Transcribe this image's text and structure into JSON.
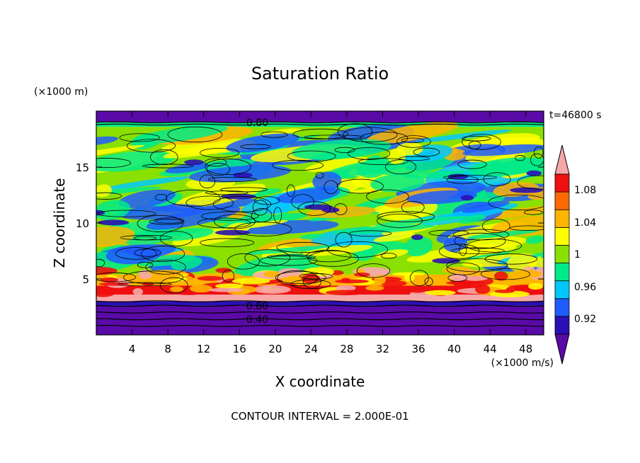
{
  "chart_data": {
    "type": "heatmap",
    "title": "Saturation Ratio",
    "xlabel": "X coordinate",
    "ylabel": "Z coordinate",
    "x_unit": "(×1000 m/s)",
    "y_unit": "(×1000 m)",
    "time_label": "t=46800 s",
    "footer": "CONTOUR INTERVAL = 2.000E-01",
    "xlim": [
      0,
      50
    ],
    "ylim": [
      0,
      20
    ],
    "x_ticks": [
      4,
      8,
      12,
      16,
      20,
      24,
      28,
      32,
      36,
      40,
      44,
      48
    ],
    "y_ticks": [
      5,
      10,
      15
    ],
    "contour_labels": [
      {
        "text": "0.80",
        "x": 18,
        "z": 19.0
      },
      {
        "text": "0.80",
        "x": 18,
        "z": 2.6
      },
      {
        "text": "0.40",
        "x": 18,
        "z": 1.4
      }
    ],
    "colorbar": {
      "labels": [
        "1.08",
        "1.04",
        "1",
        "0.96",
        "0.92"
      ],
      "levels": [
        0.9,
        0.92,
        0.94,
        0.96,
        0.98,
        1.0,
        1.02,
        1.04,
        1.06,
        1.08,
        1.1
      ],
      "colors": [
        "#5a0aa6",
        "#2a10b4",
        "#1e5cff",
        "#00c8ff",
        "#00ea8a",
        "#8ae000",
        "#ffff00",
        "#ffb400",
        "#ff6a00",
        "#ee1010",
        "#f6a8a8"
      ],
      "extend": "both"
    },
    "bands": [
      {
        "z0": 0,
        "z1": 2.6,
        "value": "<0.80",
        "color": "#5a0aa6"
      },
      {
        "z0": 2.6,
        "z1": 3.0,
        "value": "0.90-0.96",
        "color": "#2a10b4"
      },
      {
        "z0": 3.0,
        "z1": 3.6,
        "value": ">1.10",
        "color": "#f6a8a8"
      },
      {
        "z0": 3.6,
        "z1": 4.4,
        "value": "1.06-1.10",
        "color": "#ee1010"
      },
      {
        "z0": 4.4,
        "z1": 5.4,
        "value": "1.02-1.06",
        "color": "#ffb400"
      },
      {
        "z0": 5.4,
        "z1": 18.6,
        "value": "0.98-1.02",
        "color": "#8ae000"
      },
      {
        "z0": 18.6,
        "z1": 19.0,
        "value": "0.96-0.98",
        "color": "#00ea8a"
      },
      {
        "z0": 19.0,
        "z1": 20,
        "value": "<0.80",
        "color": "#5a0aa6"
      }
    ]
  }
}
